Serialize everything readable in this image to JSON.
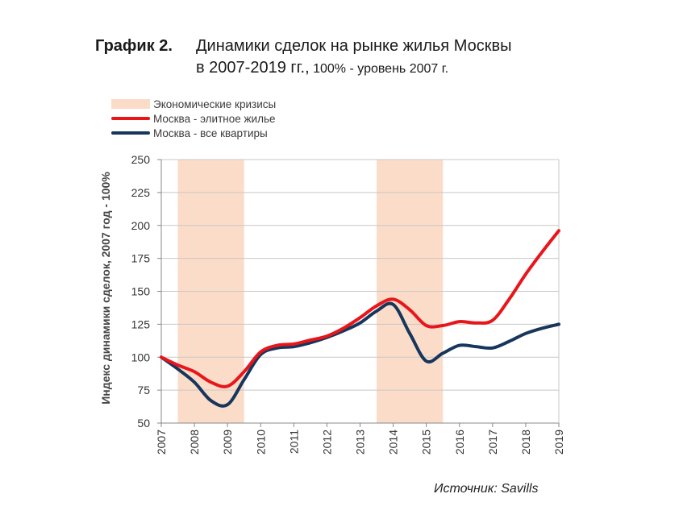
{
  "title": {
    "number": "График 2.",
    "line1": "Динамики сделок на рынке жилья Москвы",
    "line2_main": "в 2007-2019 гг.,",
    "line2_sub": " 100% - уровень 2007 г."
  },
  "legend": {
    "crisis_label": "Экономические кризисы",
    "elite_label": "Москва - элитное жилье",
    "all_label": "Москва - все квартиры"
  },
  "source": "Источник: Savills",
  "colors": {
    "elite": "#e8161b",
    "all": "#17365d",
    "crisis": "#fbdcc8",
    "grid": "#c8c8c8",
    "axis": "#888888"
  },
  "chart_data": {
    "type": "line",
    "ylabel": "Индекс динамики сделок, 2007 год - 100%",
    "xlabel": "",
    "ylim": [
      50,
      250
    ],
    "xlim": [
      2007,
      2019
    ],
    "yticks": [
      50,
      75,
      100,
      125,
      150,
      175,
      200,
      225,
      250
    ],
    "xticks": [
      "2007",
      "2008",
      "2009",
      "2010",
      "2011",
      "2012",
      "2013",
      "2014",
      "2015",
      "2016",
      "2017",
      "2018",
      "2019"
    ],
    "grid": true,
    "legend_position": "top-left",
    "crisis_periods": [
      [
        2007.5,
        2009.5
      ],
      [
        2013.5,
        2015.5
      ]
    ],
    "series": [
      {
        "name": "Москва - элитное жилье",
        "color": "#e8161b",
        "x": [
          2007,
          2007.5,
          2008,
          2008.5,
          2009,
          2009.5,
          2010,
          2010.5,
          2011,
          2011.5,
          2012,
          2012.5,
          2013,
          2013.5,
          2014,
          2014.5,
          2015,
          2015.5,
          2016,
          2016.5,
          2017,
          2017.5,
          2018,
          2018.5,
          2019
        ],
        "values": [
          100,
          94,
          89,
          81,
          78,
          89,
          104,
          109,
          110,
          113,
          116,
          122,
          130,
          139,
          144,
          136,
          124,
          124,
          127,
          126,
          128,
          144,
          163,
          180,
          196
        ]
      },
      {
        "name": "Москва - все квартиры",
        "color": "#17365d",
        "x": [
          2007,
          2007.5,
          2008,
          2008.5,
          2009,
          2009.5,
          2010,
          2010.5,
          2011,
          2011.5,
          2012,
          2012.5,
          2013,
          2013.5,
          2014,
          2014.5,
          2015,
          2015.5,
          2016,
          2016.5,
          2017,
          2017.5,
          2018,
          2018.5,
          2019
        ],
        "values": [
          100,
          91,
          81,
          67,
          64,
          83,
          102,
          107,
          108,
          111,
          115,
          120,
          126,
          135,
          140,
          118,
          97,
          103,
          109,
          108,
          107,
          112,
          118,
          122,
          125
        ]
      }
    ]
  }
}
